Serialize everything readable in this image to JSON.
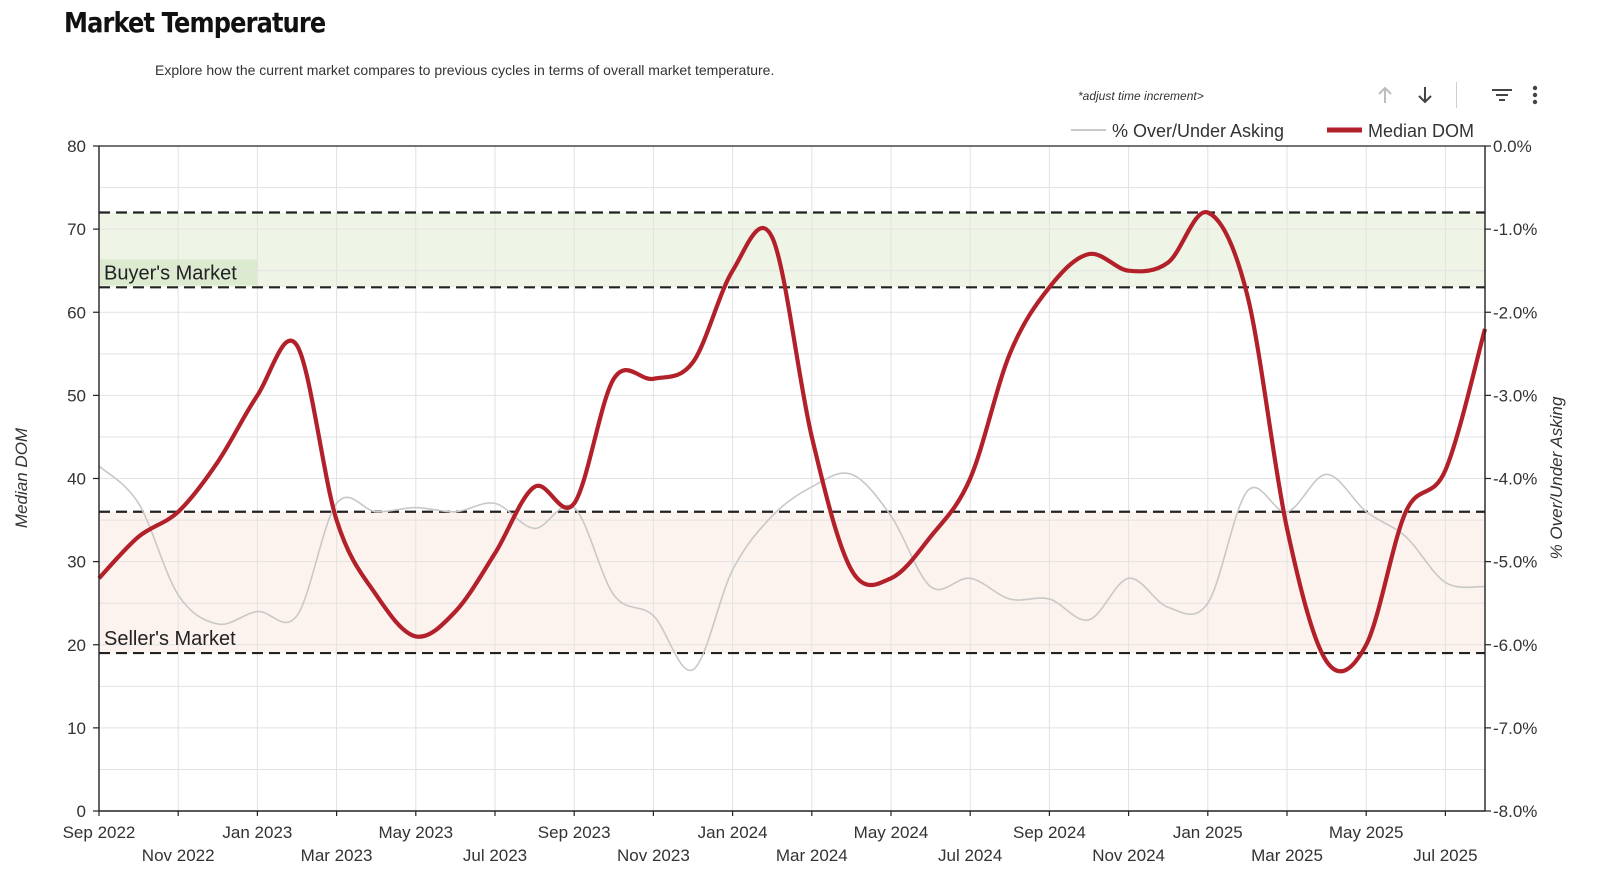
{
  "header": {
    "title": "Market Temperature",
    "subtitle": "Explore how the current market compares to previous cycles in terms of overall market temperature.",
    "adjust_label": "*adjust time increment>"
  },
  "toolbar": {
    "icons": [
      "arrow-up-icon",
      "arrow-down-icon",
      "filter-icon",
      "more-vert-icon"
    ]
  },
  "chart_data": {
    "type": "line",
    "xlabel": "",
    "ylabel": "Median DOM",
    "y2label": "% Over/Under Asking",
    "ylim": [
      0,
      80
    ],
    "y2lim": [
      -8.0,
      0.0
    ],
    "yticks": [
      "0",
      "10",
      "20",
      "30",
      "40",
      "50",
      "60",
      "70",
      "80"
    ],
    "y2ticks": [
      "-8.0%",
      "-7.0%",
      "-6.0%",
      "-5.0%",
      "-4.0%",
      "-3.0%",
      "-2.0%",
      "-1.0%",
      "0.0%"
    ],
    "x": [
      "Sep 2022",
      "Oct 2022",
      "Nov 2022",
      "Dec 2022",
      "Jan 2023",
      "Feb 2023",
      "Mar 2023",
      "Apr 2023",
      "May 2023",
      "Jun 2023",
      "Jul 2023",
      "Aug 2023",
      "Sep 2023",
      "Oct 2023",
      "Nov 2023",
      "Dec 2023",
      "Jan 2024",
      "Feb 2024",
      "Mar 2024",
      "Apr 2024",
      "May 2024",
      "Jun 2024",
      "Jul 2024",
      "Aug 2024",
      "Sep 2024",
      "Oct 2024",
      "Nov 2024",
      "Dec 2024",
      "Jan 2025",
      "Feb 2025",
      "Mar 2025",
      "Apr 2025",
      "May 2025",
      "Jun 2025",
      "Jul 2025",
      "Aug 2025"
    ],
    "xtick_labels_top": [
      "Sep 2022",
      "Jan 2023",
      "May 2023",
      "Sep 2023",
      "Jan 2024",
      "May 2024",
      "Sep 2024",
      "Jan 2025",
      "May 2025"
    ],
    "xtick_labels_bottom": [
      "Nov 2022",
      "Mar 2023",
      "Jul 2023",
      "Nov 2023",
      "Mar 2024",
      "Jul 2024",
      "Nov 2024",
      "Mar 2025",
      "Jul 2025"
    ],
    "series": [
      {
        "name": "Median DOM",
        "axis": "left",
        "color": "#b2202a",
        "values": [
          28,
          33,
          36,
          42,
          50,
          56,
          35,
          26,
          21,
          24,
          31,
          39,
          37,
          52,
          52,
          54,
          65,
          69,
          45,
          29,
          28,
          33,
          40,
          55,
          63,
          67,
          65,
          66,
          72,
          62,
          34,
          18,
          20,
          36,
          41,
          58
        ]
      },
      {
        "name": "% Over/Under Asking",
        "axis": "right",
        "color": "#c8c8c8",
        "values": [
          -3.85,
          -4.3,
          -5.4,
          -5.75,
          -5.6,
          -5.65,
          -4.3,
          -4.4,
          -4.35,
          -4.4,
          -4.3,
          -4.6,
          -4.35,
          -5.4,
          -5.65,
          -6.3,
          -5.1,
          -4.45,
          -4.1,
          -3.95,
          -4.45,
          -5.3,
          -5.2,
          -5.45,
          -5.45,
          -5.7,
          -5.2,
          -5.55,
          -5.5,
          -4.15,
          -4.4,
          -3.95,
          -4.4,
          -4.7,
          -5.25,
          -5.3
        ]
      }
    ],
    "zones": [
      {
        "label": "Buyer's Market",
        "from": 63,
        "to": 72,
        "color": "#eef5e6",
        "label_bg": "#dcebd0"
      },
      {
        "label": "Seller's Market",
        "from": 19,
        "to": 36,
        "color": "#fdf3ee",
        "label_bg": "#fdf3ee"
      }
    ],
    "legend_position": "top-right",
    "grid": true
  }
}
